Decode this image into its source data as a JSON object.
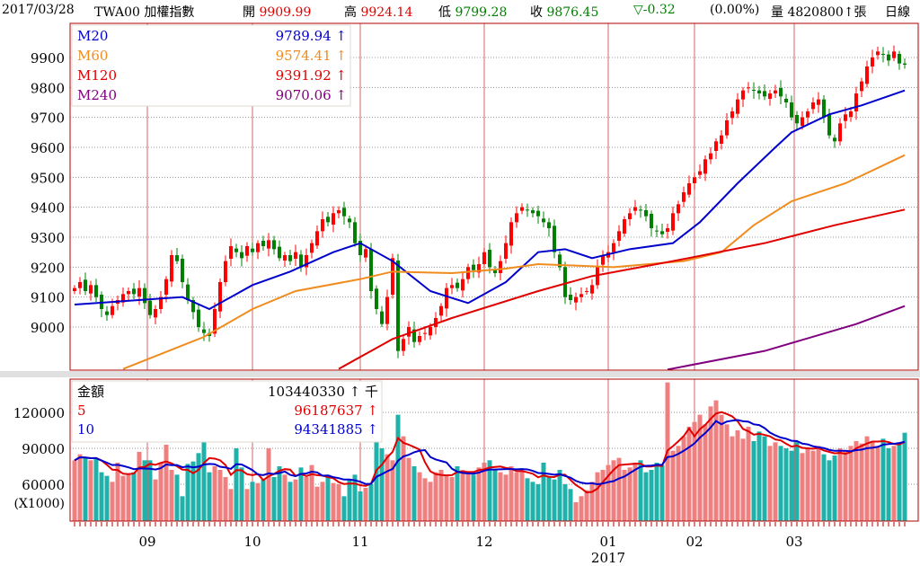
{
  "header": {
    "date": "2017/03/28",
    "symbol": "TWA00 加權指數",
    "open_label": "開",
    "open": "9909.99",
    "high_label": "高",
    "high": "9924.14",
    "low_label": "低",
    "low": "9799.28",
    "close_label": "收",
    "close": "9876.45",
    "change": "▽-0.32",
    "change_pct": "(0.00%)",
    "volume": "量 4820800↑張",
    "period": "日線"
  },
  "colors": {
    "up": "#ff0000",
    "down": "#008000",
    "vol_up": "#f08080",
    "vol_down": "#20b2aa",
    "m20": "#0000cc",
    "m60": "#f08c1e",
    "m120": "#e00000",
    "m240": "#800080",
    "ma5": "#e00000",
    "ma10": "#0000cc",
    "frame": "#b00000"
  },
  "price_legend": [
    {
      "label": "M20",
      "value": "9789.94 ↑",
      "color": "#0000cc"
    },
    {
      "label": "M60",
      "value": "9574.41 ↑",
      "color": "#f08c1e"
    },
    {
      "label": "M120",
      "value": "9391.92 ↑",
      "color": "#e00000"
    },
    {
      "label": "M240",
      "value": "9070.06 ↑",
      "color": "#800080"
    }
  ],
  "volume_legend": [
    {
      "label": "金額",
      "value": "103440330 ↑ 千",
      "color": "#000000"
    },
    {
      "label": "5",
      "value": "96187637 ↑",
      "color": "#e00000"
    },
    {
      "label": "10",
      "value": "94341885 ↑",
      "color": "#0000cc"
    }
  ],
  "chart_data": {
    "type": "candlestick",
    "price_ticks": [
      "9000",
      "9100",
      "9200",
      "9300",
      "9400",
      "9500",
      "9600",
      "9700",
      "9800",
      "9900"
    ],
    "price_range": [
      8856,
      10002
    ],
    "volume_ticks": [
      "60000",
      "90000",
      "120000"
    ],
    "volume_unit": "(X1000)",
    "volume_range": [
      29000,
      148000
    ],
    "months": [
      {
        "label": "09",
        "index": 13.5
      },
      {
        "label": "10",
        "index": 33
      },
      {
        "label": "11",
        "index": 53
      },
      {
        "label": "12",
        "index": 76
      },
      {
        "label": "01",
        "index": 99,
        "year": "2017"
      },
      {
        "label": "02",
        "index": 115
      },
      {
        "label": "03",
        "index": 133.5
      }
    ],
    "close": [
      9130,
      9150,
      9120,
      9140,
      9100,
      9060,
      9040,
      9070,
      9090,
      9110,
      9120,
      9110,
      9130,
      9080,
      9040,
      9060,
      9100,
      9160,
      9240,
      9220,
      9150,
      9090,
      9050,
      9000,
      8980,
      8970,
      9060,
      9150,
      9220,
      9270,
      9250,
      9230,
      9270,
      9250,
      9280,
      9270,
      9290,
      9260,
      9230,
      9240,
      9220,
      9250,
      9200,
      9240,
      9280,
      9320,
      9360,
      9350,
      9380,
      9390,
      9370,
      9350,
      9280,
      9240,
      9260,
      9120,
      9060,
      9010,
      9100,
      9230,
      8920,
      8960,
      9000,
      8950,
      8970,
      8980,
      9000,
      9030,
      9070,
      9130,
      9140,
      9130,
      9160,
      9200,
      9190,
      9210,
      9250,
      9200,
      9180,
      9220,
      9280,
      9350,
      9380,
      9400,
      9390,
      9380,
      9370,
      9350,
      9330,
      9250,
      9200,
      9100,
      9090,
      9100,
      9110,
      9120,
      9140,
      9200,
      9240,
      9250,
      9280,
      9320,
      9360,
      9380,
      9400,
      9390,
      9370,
      9330,
      9320,
      9310,
      9330,
      9380,
      9410,
      9450,
      9480,
      9500,
      9520,
      9560,
      9580,
      9620,
      9640,
      9690,
      9720,
      9760,
      9790,
      9800,
      9790,
      9780,
      9770,
      9780,
      9790,
      9770,
      9750,
      9700,
      9680,
      9700,
      9720,
      9750,
      9760,
      9700,
      9640,
      9620,
      9680,
      9710,
      9720,
      9780,
      9820,
      9870,
      9900,
      9920,
      9910,
      9890,
      9920,
      9880,
      9876
    ],
    "volume": [
      80000,
      85000,
      82000,
      80000,
      82000,
      70000,
      67000,
      62000,
      78000,
      67000,
      68000,
      70000,
      87000,
      80000,
      80000,
      64000,
      78000,
      93000,
      72000,
      68000,
      50000,
      77000,
      79000,
      86000,
      97000,
      70000,
      75000,
      72000,
      66000,
      56000,
      90000,
      74000,
      56000,
      62000,
      61000,
      64000,
      90000,
      66000,
      75000,
      68000,
      62000,
      64000,
      74000,
      66000,
      76000,
      58000,
      62000,
      68000,
      61000,
      60000,
      50000,
      64000,
      68000,
      54000,
      57000,
      60000,
      120000,
      90000,
      85000,
      80000,
      118000,
      100000,
      82000,
      75000,
      70000,
      65000,
      62000,
      70000,
      72000,
      68000,
      66000,
      75000,
      72000,
      70000,
      68000,
      74000,
      78000,
      80000,
      72000,
      70000,
      68000,
      75000,
      70000,
      72000,
      65000,
      62000,
      60000,
      78000,
      66000,
      64000,
      72000,
      60000,
      56000,
      45000,
      50000,
      55000,
      62000,
      70000,
      72000,
      76000,
      80000,
      82000,
      72000,
      74000,
      78000,
      80000,
      70000,
      72000,
      78000,
      76000,
      145000,
      88000,
      92000,
      100000,
      108000,
      112000,
      118000,
      110000,
      125000,
      130000,
      118000,
      110000,
      100000,
      105000,
      98000,
      108000,
      96000,
      104000,
      100000,
      92000,
      95000,
      92000,
      90000,
      88000,
      96000,
      86000,
      90000,
      88000,
      92000,
      85000,
      80000,
      84000,
      90000,
      88000,
      92000,
      96000,
      94000,
      100000,
      96000,
      92000,
      98000,
      90000,
      92000,
      94000,
      103000
    ],
    "ma_lines": [
      {
        "name": "M20",
        "color": "#0000cc",
        "points": [
          [
            0,
            9075
          ],
          [
            8,
            9085
          ],
          [
            20,
            9100
          ],
          [
            25,
            9060
          ],
          [
            33,
            9140
          ],
          [
            40,
            9185
          ],
          [
            48,
            9250
          ],
          [
            53,
            9280
          ],
          [
            59,
            9220
          ],
          [
            66,
            9120
          ],
          [
            73,
            9080
          ],
          [
            80,
            9150
          ],
          [
            86,
            9250
          ],
          [
            91,
            9260
          ],
          [
            96,
            9230
          ],
          [
            103,
            9260
          ],
          [
            111,
            9280
          ],
          [
            116,
            9350
          ],
          [
            123,
            9480
          ],
          [
            130,
            9600
          ],
          [
            133,
            9650
          ],
          [
            140,
            9710
          ],
          [
            146,
            9740
          ],
          [
            154,
            9790
          ]
        ]
      },
      {
        "name": "M60",
        "color": "#f08c1e",
        "points": [
          [
            9,
            8860
          ],
          [
            24,
            8967
          ],
          [
            33,
            9060
          ],
          [
            41,
            9120
          ],
          [
            53,
            9160
          ],
          [
            59,
            9185
          ],
          [
            70,
            9180
          ],
          [
            80,
            9195
          ],
          [
            86,
            9210
          ],
          [
            100,
            9200
          ],
          [
            113,
            9220
          ],
          [
            120,
            9250
          ],
          [
            126,
            9340
          ],
          [
            133,
            9420
          ],
          [
            143,
            9480
          ],
          [
            154,
            9574
          ]
        ]
      },
      {
        "name": "M120",
        "color": "#e00000",
        "points": [
          [
            49,
            8860
          ],
          [
            59,
            8960
          ],
          [
            70,
            9030
          ],
          [
            86,
            9120
          ],
          [
            96,
            9170
          ],
          [
            111,
            9220
          ],
          [
            128,
            9280
          ],
          [
            141,
            9340
          ],
          [
            154,
            9392
          ]
        ]
      },
      {
        "name": "M240",
        "color": "#800080",
        "points": [
          [
            110,
            8858
          ],
          [
            128,
            8920
          ],
          [
            145,
            9010
          ],
          [
            154,
            9070
          ]
        ]
      }
    ],
    "volume_ma": [
      {
        "name": "5",
        "period": 5,
        "color": "#e00000"
      },
      {
        "name": "10",
        "period": 10,
        "color": "#0000cc"
      }
    ]
  }
}
